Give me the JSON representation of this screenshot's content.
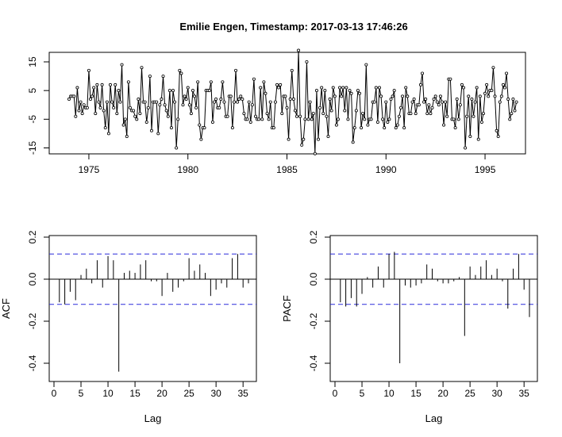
{
  "title": "Emilie Engen, Timestamp: 2017-03-13 17:46:26",
  "chart_data": [
    {
      "type": "line",
      "panel": "time-series",
      "x_start": 1974.0,
      "x_step_months": 1,
      "xlim": [
        1974,
        1996
      ],
      "ylim": [
        -15,
        19
      ],
      "xticks": [
        "1975",
        "1980",
        "1985",
        "1990",
        "1995"
      ],
      "yticks": [
        "-15",
        "-5",
        "5",
        "15"
      ],
      "xlabel": "",
      "ylabel": "",
      "values": [
        2,
        3,
        3,
        3,
        -4,
        6,
        -2,
        1,
        -3,
        0,
        -1,
        -1,
        12,
        2,
        3,
        6,
        -3,
        7,
        1,
        -1,
        7,
        -2,
        -8,
        1,
        -10,
        7,
        1,
        -1,
        7,
        -3,
        5,
        1,
        14,
        -7,
        -5,
        -11,
        8,
        -1,
        -2,
        -2,
        -4,
        -5,
        2,
        -3,
        13,
        1,
        1,
        -6,
        -1,
        10,
        -9,
        1,
        1,
        1,
        -10,
        0,
        2,
        10,
        0,
        -2,
        -4,
        5,
        -8,
        5,
        1,
        -15,
        -5,
        12,
        11,
        0,
        3,
        2,
        6,
        0,
        -3,
        5,
        3,
        -1,
        8,
        -7,
        -12,
        -8,
        -8,
        5,
        5,
        5,
        8,
        -6,
        1,
        2,
        -1,
        -1,
        2,
        8,
        1,
        -4,
        -4,
        3,
        3,
        -8,
        1,
        12,
        1,
        2,
        3,
        2,
        -3,
        -5,
        -5,
        1,
        -6,
        0,
        9,
        -4,
        -5,
        -5,
        6,
        -5,
        8,
        4,
        -3,
        -5,
        1,
        -8,
        -8,
        1,
        7,
        6,
        7,
        -3,
        3,
        3,
        -1,
        -12,
        2,
        12,
        2,
        -2,
        -4,
        19,
        -4,
        -14,
        -12,
        -5,
        15,
        -5,
        1,
        -5,
        -3,
        -17,
        5,
        -12,
        -1,
        6,
        -3,
        5,
        -4,
        -11,
        2,
        -2,
        6,
        3,
        -7,
        -5,
        6,
        3,
        6,
        -2,
        6,
        -5,
        5,
        4,
        -13,
        -8,
        -2,
        5,
        4,
        -8,
        -3,
        -5,
        14,
        -7,
        -5,
        -5,
        1,
        1,
        6,
        -6,
        6,
        3,
        -5,
        -8,
        1,
        -6,
        -5,
        2,
        3,
        5,
        -8,
        -7,
        -4,
        -1,
        3,
        -8,
        6,
        3,
        -3,
        -3,
        1,
        2,
        -3,
        0,
        0,
        7,
        11,
        1,
        2,
        -3,
        0,
        -3,
        -1,
        2,
        3,
        1,
        0,
        3,
        1,
        -7,
        1,
        -4,
        9,
        9,
        -5,
        -5,
        -8,
        2,
        -5,
        0,
        7,
        6,
        -15,
        -4,
        3,
        -11,
        2,
        -4,
        1,
        6,
        -12,
        3,
        -6,
        -3,
        4,
        7,
        3,
        5,
        5,
        13,
        3,
        -9,
        -11,
        1,
        3,
        7,
        6,
        11,
        2,
        -5,
        -3,
        2,
        -2,
        1
      ]
    },
    {
      "type": "bar",
      "panel": "acf",
      "xlabel": "Lag",
      "ylabel": "ACF",
      "xlim": [
        0,
        36
      ],
      "ylim": [
        -0.45,
        0.2
      ],
      "xticks": [
        "0",
        "5",
        "10",
        "15",
        "20",
        "25",
        "30",
        "35"
      ],
      "yticks": [
        "-0.4",
        "-0.2",
        "0.0",
        "0.2"
      ],
      "confidence_bound": 0.12,
      "lags": [
        1,
        2,
        3,
        4,
        5,
        6,
        7,
        8,
        9,
        10,
        11,
        12,
        13,
        14,
        15,
        16,
        17,
        18,
        19,
        20,
        21,
        22,
        23,
        24,
        25,
        26,
        27,
        28,
        29,
        30,
        31,
        32,
        33,
        34,
        35,
        36
      ],
      "values": [
        -0.11,
        -0.12,
        -0.06,
        -0.1,
        0.02,
        0.05,
        -0.02,
        0.09,
        -0.04,
        0.11,
        0.09,
        -0.44,
        0.03,
        0.04,
        0.03,
        0.07,
        0.09,
        -0.01,
        -0.01,
        -0.08,
        0.03,
        -0.06,
        -0.04,
        -0.01,
        0.1,
        0.04,
        0.07,
        0.03,
        -0.08,
        -0.05,
        -0.02,
        -0.04,
        0.1,
        0.12,
        -0.04,
        -0.02
      ]
    },
    {
      "type": "bar",
      "panel": "pacf",
      "xlabel": "Lag",
      "ylabel": "PACF",
      "xlim": [
        0,
        36
      ],
      "ylim": [
        -0.45,
        0.2
      ],
      "xticks": [
        "0",
        "5",
        "10",
        "15",
        "20",
        "25",
        "30",
        "35"
      ],
      "yticks": [
        "-0.4",
        "-0.2",
        "0.0",
        "0.2"
      ],
      "confidence_bound": 0.12,
      "lags": [
        1,
        2,
        3,
        4,
        5,
        6,
        7,
        8,
        9,
        10,
        11,
        12,
        13,
        14,
        15,
        16,
        17,
        18,
        19,
        20,
        21,
        22,
        23,
        24,
        25,
        26,
        27,
        28,
        29,
        30,
        31,
        32,
        33,
        34,
        35,
        36
      ],
      "values": [
        -0.11,
        -0.13,
        -0.09,
        -0.13,
        -0.07,
        0.01,
        -0.04,
        0.06,
        -0.04,
        0.12,
        0.13,
        -0.4,
        -0.03,
        -0.04,
        -0.03,
        -0.02,
        0.07,
        0.05,
        -0.01,
        -0.02,
        -0.02,
        -0.01,
        0.01,
        -0.27,
        0.06,
        0.02,
        0.06,
        0.09,
        0.02,
        0.05,
        -0.01,
        -0.14,
        0.05,
        0.12,
        -0.05,
        -0.18
      ]
    }
  ]
}
